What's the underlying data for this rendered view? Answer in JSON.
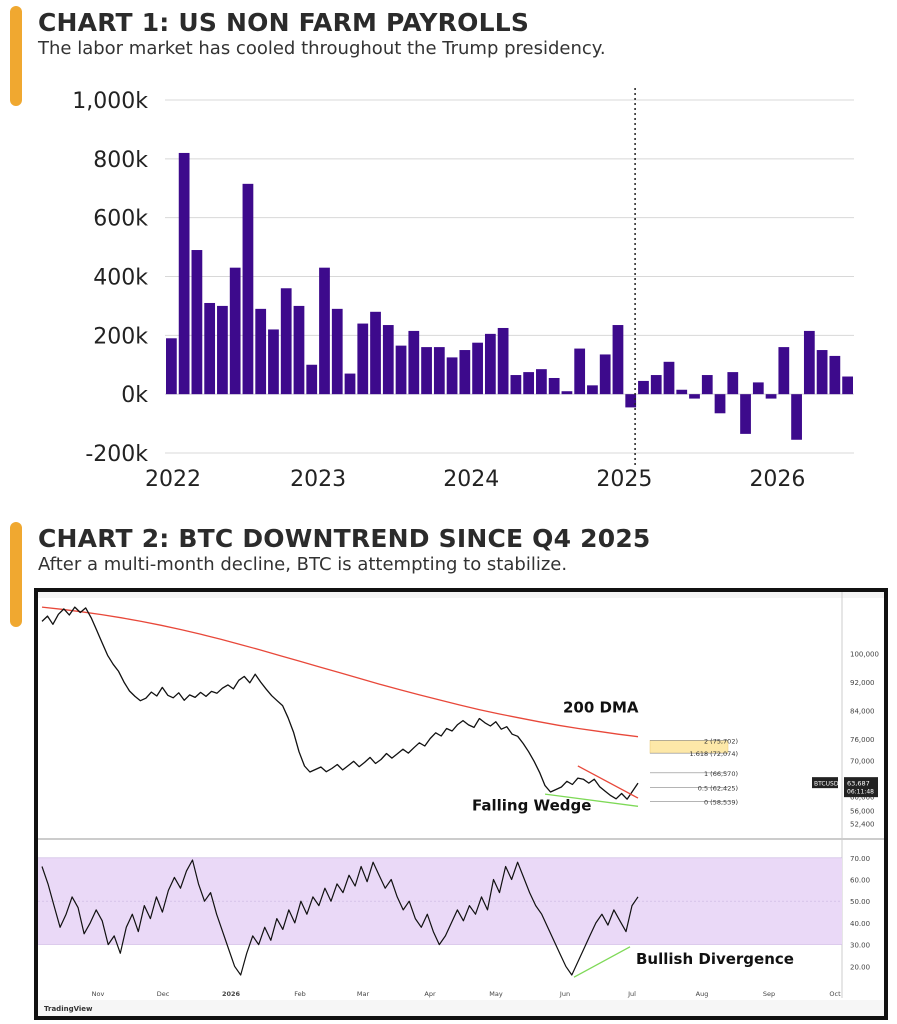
{
  "chart1": {
    "title": "CHART 1: US NON FARM PAYROLLS",
    "subtitle": "The labor market has cooled throughout the Trump presidency.",
    "chart_data": {
      "type": "bar",
      "title": "CHART 1: US NON FARM PAYROLLS",
      "subtitle": "The labor market has cooled throughout the Trump presidency.",
      "color": "#3d0a8c",
      "x_tick_labels": [
        "2022",
        "2023",
        "2024",
        "2025",
        "2026"
      ],
      "y_tick_labels": [
        "1,000k",
        "800k",
        "600k",
        "400k",
        "200k",
        "0k",
        "-200k"
      ],
      "ylim": [
        -200,
        1000
      ],
      "y_unit": "thousands",
      "grid": true,
      "marker_line_label": "2025",
      "values": [
        190,
        820,
        490,
        310,
        300,
        430,
        715,
        290,
        220,
        360,
        300,
        100,
        430,
        290,
        70,
        240,
        280,
        235,
        165,
        215,
        160,
        160,
        125,
        150,
        175,
        205,
        225,
        65,
        75,
        85,
        55,
        10,
        155,
        30,
        135,
        235,
        -45,
        45,
        65,
        110,
        15,
        -15,
        65,
        -65,
        75,
        -135,
        40,
        -15,
        160,
        -155,
        215,
        150,
        130,
        60
      ]
    }
  },
  "chart2": {
    "title": "CHART 2: BTC DOWNTREND SINCE Q4 2025",
    "subtitle": "After a multi-month decline, BTC is attempting to stabilize.",
    "chart_data": {
      "type": "line",
      "title": "CHART 2: BTC DOWNTREND SINCE Q4 2025",
      "subtitle": "After a multi-month decline, BTC is attempting to stabilize.",
      "x_tick_labels": [
        "Nov",
        "Dec",
        "2026",
        "Feb",
        "Mar",
        "Apr",
        "May",
        "Jun",
        "Jul",
        "Aug",
        "Sep",
        "Oct"
      ],
      "price_axis_labels": [
        "100,000",
        "92,000",
        "84,000",
        "76,000",
        "70,000",
        "64,000",
        "60,000",
        "56,000",
        "52,400"
      ],
      "rsi_axis_labels": [
        "70.00",
        "60.00",
        "50.00",
        "40.00",
        "30.00",
        "20.00"
      ],
      "annotations": {
        "dma": "200 DMA",
        "wedge": "Falling Wedge",
        "divergence": "Bullish Divergence"
      },
      "fib_levels": [
        {
          "label": "2 (75,702)",
          "value": 75702
        },
        {
          "label": "1.618 (72,074)",
          "value": 72074
        },
        {
          "label": "1 (66,570)",
          "value": 66570
        },
        {
          "label": "0.5 (62,425)",
          "value": 62425
        },
        {
          "label": "0 (58,539)",
          "value": 58539
        }
      ],
      "ticker": "BTCUSD",
      "last_price": "63,687",
      "countdown": "06:11:48",
      "brand": "TradingView",
      "colors": {
        "price": "#111111",
        "dma": "#e8483a",
        "wedge_upper": "#e8483a",
        "wedge_lower": "#7ed957",
        "rsi_band": "#ead9f7",
        "fib_zone": "#fde8a8"
      },
      "series": [
        {
          "name": "BTCUSD",
          "values": [
            109000,
            110500,
            108200,
            111000,
            112500,
            110800,
            113000,
            111500,
            112800,
            110000,
            106500,
            103000,
            99500,
            97000,
            95000,
            92000,
            89500,
            88000,
            86800,
            87500,
            89200,
            88100,
            90500,
            88300,
            87600,
            89000,
            86900,
            88400,
            87700,
            89100,
            88000,
            89400,
            88900,
            90300,
            91200,
            90100,
            92500,
            93600,
            91800,
            94200,
            92000,
            90000,
            88200,
            86800,
            85400,
            82000,
            78000,
            72500,
            68500,
            66800,
            67500,
            68200,
            66900,
            67800,
            68900,
            67400,
            68600,
            69800,
            68300,
            69500,
            70900,
            69200,
            70300,
            72000,
            70700,
            71900,
            73200,
            72100,
            73600,
            75000,
            74100,
            76200,
            77800,
            76900,
            79000,
            78300,
            80100,
            81200,
            80000,
            79300,
            81800,
            80600,
            79700,
            80900,
            78800,
            79500,
            77400,
            76800,
            74800,
            72500,
            69800,
            66700,
            63000,
            61200,
            61900,
            62600,
            64200,
            63300,
            65100,
            64800,
            63700,
            64800,
            62700,
            61400,
            60200,
            59300,
            60800,
            59200,
            61400,
            63687
          ]
        },
        {
          "name": "200 DMA",
          "values": [
            113000,
            112400,
            111700,
            110900,
            110000,
            109000,
            107900,
            106700,
            105400,
            104000,
            102500,
            101000,
            99400,
            97800,
            96200,
            94600,
            93000,
            91400,
            89900,
            88400,
            87000,
            85600,
            84300,
            83100,
            82000,
            80900,
            79900,
            79000,
            78200,
            77400,
            76700
          ]
        },
        {
          "name": "RSI",
          "values": [
            66,
            58,
            48,
            38,
            44,
            52,
            47,
            35,
            40,
            46,
            41,
            30,
            34,
            26,
            38,
            44,
            36,
            48,
            42,
            52,
            45,
            55,
            61,
            56,
            64,
            69,
            58,
            50,
            54,
            44,
            36,
            28,
            20,
            16,
            26,
            34,
            30,
            38,
            32,
            42,
            37,
            46,
            40,
            50,
            44,
            52,
            48,
            56,
            50,
            58,
            54,
            62,
            57,
            66,
            59,
            68,
            62,
            56,
            60,
            52,
            46,
            50,
            42,
            38,
            44,
            36,
            30,
            34,
            40,
            46,
            41,
            48,
            44,
            52,
            46,
            60,
            54,
            66,
            60,
            68,
            61,
            54,
            48,
            44,
            38,
            32,
            26,
            20,
            16,
            22,
            28,
            34,
            40,
            44,
            39,
            46,
            41,
            36,
            48,
            52
          ]
        }
      ]
    }
  }
}
